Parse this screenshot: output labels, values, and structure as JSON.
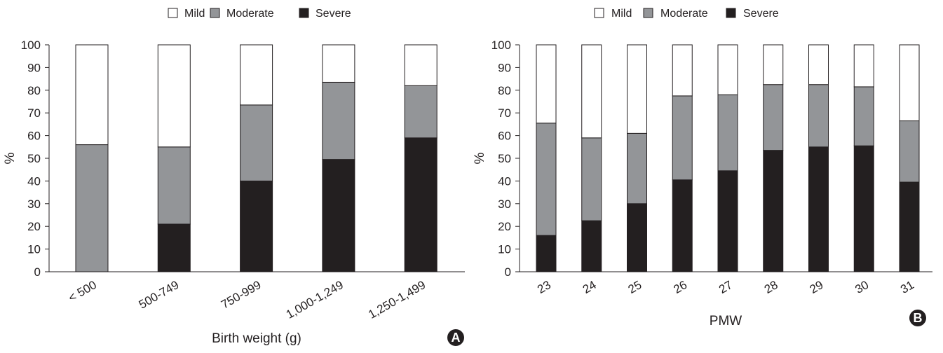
{
  "chart_data": [
    {
      "type": "bar",
      "stacked": true,
      "panel_label": "A",
      "title": "",
      "xlabel": "Birth weight (g)",
      "ylabel": "%",
      "ylim": [
        0,
        100
      ],
      "yticks": [
        "0",
        "10",
        "20",
        "30",
        "40",
        "50",
        "60",
        "70",
        "80",
        "90",
        "100"
      ],
      "categories": [
        "< 500",
        "500-749",
        "750-999",
        "1,000-1,249",
        "1,250-1,499"
      ],
      "series": [
        {
          "name": "Severe",
          "color": "#231f20",
          "values": [
            0,
            21,
            40,
            49.5,
            59
          ]
        },
        {
          "name": "Moderate",
          "color": "#939598",
          "values": [
            56,
            34,
            33.5,
            34,
            23
          ]
        },
        {
          "name": "Mild",
          "color": "#ffffff",
          "values": [
            44,
            45,
            26.5,
            16.5,
            18
          ]
        }
      ],
      "legend": {
        "position": "top",
        "order": [
          "Mild",
          "Moderate",
          "Severe"
        ]
      },
      "grid": false
    },
    {
      "type": "bar",
      "stacked": true,
      "panel_label": "B",
      "title": "",
      "xlabel": "PMW",
      "ylabel": "%",
      "ylim": [
        0,
        100
      ],
      "yticks": [
        "0",
        "10",
        "20",
        "30",
        "40",
        "50",
        "60",
        "70",
        "80",
        "90",
        "100"
      ],
      "categories": [
        "23",
        "24",
        "25",
        "26",
        "27",
        "28",
        "29",
        "30",
        "31"
      ],
      "series": [
        {
          "name": "Severe",
          "color": "#231f20",
          "values": [
            16,
            22.5,
            30,
            40.5,
            44.5,
            53.5,
            55,
            55.5,
            39.5
          ]
        },
        {
          "name": "Moderate",
          "color": "#939598",
          "values": [
            49.5,
            36.5,
            31,
            37,
            33.5,
            29,
            27.5,
            26,
            27
          ]
        },
        {
          "name": "Mild",
          "color": "#ffffff",
          "values": [
            34.5,
            41,
            39,
            22.5,
            22,
            17.5,
            17.5,
            18.5,
            33.5
          ]
        }
      ],
      "legend": {
        "position": "top",
        "order": [
          "Mild",
          "Moderate",
          "Severe"
        ]
      },
      "grid": false
    }
  ]
}
